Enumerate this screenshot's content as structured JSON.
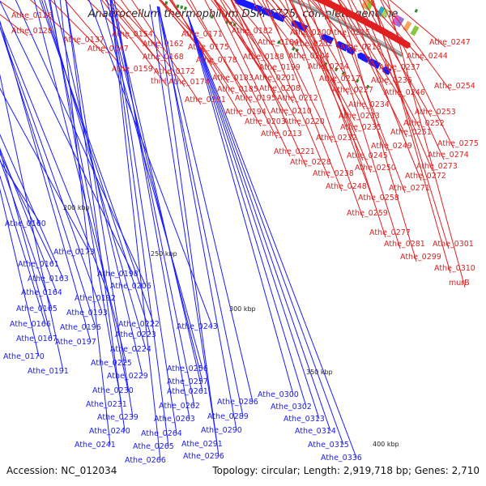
{
  "title": "Anaerocellum thermophilum DSM 6725, complete genome",
  "accession": "Accession: NC_012034",
  "summary": "Topology: circular; Length: 2,919,718 bp; Genes: 2,710",
  "colors": {
    "forward": "#e02020",
    "reverse": "#1a1aff",
    "backbone": "#777777"
  },
  "ticks": [
    "200 kbp",
    "250 kbp",
    "300 kbp",
    "350 kbp",
    "400 kbp"
  ],
  "forward_labels": [
    "Athe_0126",
    "Athe_0128",
    "Athe_0137",
    "Athe_0147",
    "Athe_0154",
    "Athe_0159",
    "Athe_0162",
    "Athe_0168",
    "Athe_0171",
    "Athe_0172",
    "Athe_0174",
    "Athe_0175",
    "Athe_0178",
    "Athe_0181",
    "thiH",
    "Athe_0182",
    "Athe_0183",
    "Athe_0184",
    "Athe_0185",
    "Athe_0188",
    "Athe_0194",
    "Athe_0195",
    "Athe_0199",
    "Athe_0200",
    "Athe_0201",
    "Athe_0202",
    "Athe_0203",
    "Athe_0204",
    "Athe_0208",
    "Athe_0210",
    "Athe_0212",
    "Athe_0213",
    "Athe_0214",
    "Athe_0215",
    "Athe_0217",
    "Athe_0218",
    "Athe_0220",
    "Athe_0221",
    "Athe_0227",
    "Athe_0228",
    "Athe_0232",
    "Athe_0233",
    "Athe_0234",
    "Athe_0235",
    "Athe_0236",
    "Athe_0237",
    "Athe_0238",
    "Athe_0244",
    "Athe_0245",
    "Athe_0246",
    "Athe_0247",
    "Athe_0248",
    "Athe_0249",
    "Athe_0250",
    "Athe_0251",
    "Athe_0252",
    "Athe_0253",
    "Athe_0254",
    "Athe_0258",
    "Athe_0259",
    "Athe_0271",
    "Athe_0272",
    "Athe_0273",
    "Athe_0274",
    "Athe_0275",
    "Athe_0277",
    "Athe_0281",
    "Athe_0299",
    "Athe_0301",
    "Athe_0310",
    "murB"
  ],
  "reverse_labels": [
    "Athe_0160",
    "Athe_0161",
    "Athe_0163",
    "Athe_0164",
    "Athe_0165",
    "Athe_0166",
    "Athe_0167",
    "Athe_0170",
    "Athe_0173",
    "Athe_0191",
    "Athe_0192",
    "Athe_0193",
    "Athe_0196",
    "Athe_0197",
    "Athe_0198",
    "Athe_0206",
    "Athe_0222",
    "Athe_0223",
    "Athe_0224",
    "Athe_0225",
    "Athe_0229",
    "Athe_0230",
    "Athe_0231",
    "Athe_0239",
    "Athe_0240",
    "Athe_0241",
    "Athe_0243",
    "Athe_0256",
    "Athe_0257",
    "Athe_0261",
    "Athe_0262",
    "Athe_0263",
    "Athe_0264",
    "Athe_0265",
    "Athe_0266",
    "Athe_0286",
    "Athe_0289",
    "Athe_0290",
    "Athe_0291",
    "Athe_0296",
    "Athe_0300",
    "Athe_0302",
    "Athe_0313",
    "Athe_0314",
    "Athe_0315",
    "Athe_0336"
  ]
}
